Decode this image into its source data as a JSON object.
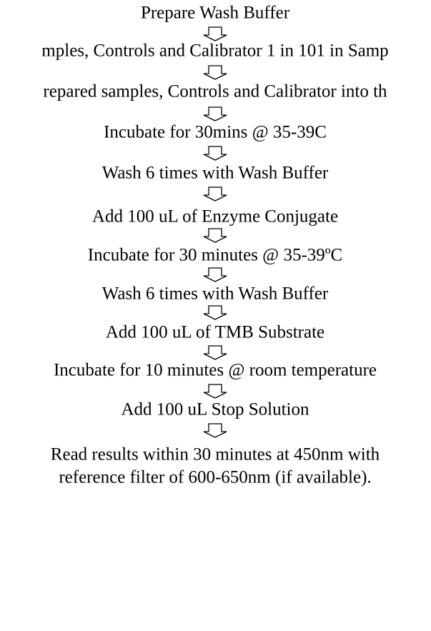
{
  "steps": [
    [
      "Prepare Wash Buffer"
    ],
    [
      "mples, Controls and Calibrator 1 in 101 in Samp"
    ],
    [
      "repared samples, Controls and Calibrator into th"
    ],
    [
      "Incubate for 30mins @ 35-39C"
    ],
    [
      "Wash 6 times with Wash Buffer"
    ],
    [
      "Add 100 uL of Enzyme Conjugate"
    ],
    [
      "Incubate for 30 minutes @ 35-39ºC"
    ],
    [
      "Wash 6 times with Wash Buffer"
    ],
    [
      "Add 100 uL of TMB Substrate"
    ],
    [
      "Incubate for 10 minutes @ room temperature"
    ],
    [
      "Add 100 uL Stop Solution"
    ],
    [
      "Read results within 30 minutes at 450nm with",
      "reference filter of 600-650nm (if available)."
    ]
  ]
}
